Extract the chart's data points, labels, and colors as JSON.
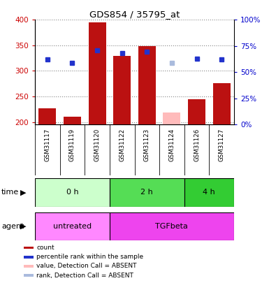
{
  "title": "GDS854 / 35795_at",
  "samples": [
    "GSM31117",
    "GSM31119",
    "GSM31120",
    "GSM31122",
    "GSM31123",
    "GSM31124",
    "GSM31126",
    "GSM31127"
  ],
  "count_values": [
    227,
    210,
    395,
    330,
    348,
    null,
    244,
    276
  ],
  "count_absent": [
    null,
    null,
    null,
    null,
    null,
    218,
    null,
    null
  ],
  "rank_values": [
    323,
    315,
    340,
    335,
    337,
    null,
    324,
    323
  ],
  "rank_absent": [
    null,
    null,
    null,
    null,
    null,
    315,
    null,
    null
  ],
  "ylim_left": [
    195,
    400
  ],
  "ylim_right": [
    0,
    100
  ],
  "yticks_left": [
    200,
    250,
    300,
    350,
    400
  ],
  "yticks_right": [
    0,
    25,
    50,
    75,
    100
  ],
  "bar_color": "#bb1111",
  "bar_absent_color": "#ffbbbb",
  "rank_color": "#2233cc",
  "rank_absent_color": "#aabbdd",
  "time_groups": [
    {
      "label": "0 h",
      "start": 0,
      "end": 3,
      "color": "#ccffcc"
    },
    {
      "label": "2 h",
      "start": 3,
      "end": 6,
      "color": "#55dd55"
    },
    {
      "label": "4 h",
      "start": 6,
      "end": 8,
      "color": "#33cc33"
    }
  ],
  "agent_groups": [
    {
      "label": "untreated",
      "start": 0,
      "end": 3,
      "color": "#ff88ff"
    },
    {
      "label": "TGFbeta",
      "start": 3,
      "end": 8,
      "color": "#ee44ee"
    }
  ],
  "legend_items": [
    {
      "label": "count",
      "color": "#bb1111"
    },
    {
      "label": "percentile rank within the sample",
      "color": "#2233cc"
    },
    {
      "label": "value, Detection Call = ABSENT",
      "color": "#ffbbbb"
    },
    {
      "label": "rank, Detection Call = ABSENT",
      "color": "#aabbdd"
    }
  ],
  "left_axis_color": "#cc0000",
  "right_axis_color": "#0000cc",
  "grid_color": "#888888",
  "sample_bg_color": "#d0d0d0",
  "plot_bg_color": "#ffffff"
}
